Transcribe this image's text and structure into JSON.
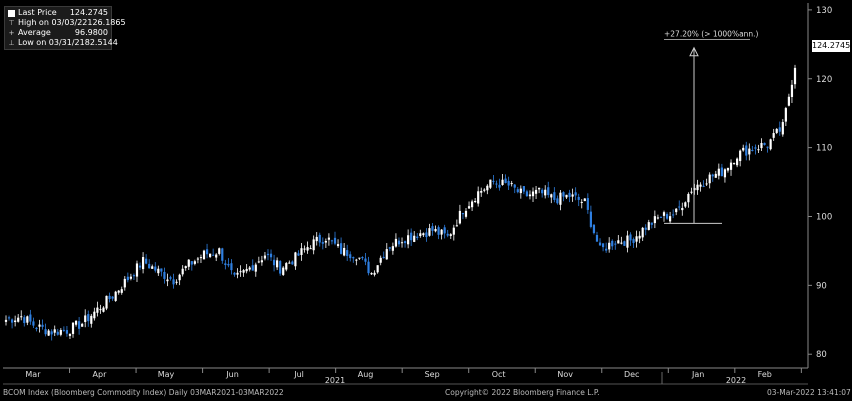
{
  "legend": {
    "last_label": "Last Price",
    "last_value": "124.2745",
    "high_label": "High on 03/03/22",
    "high_value": "126.1865",
    "avg_label": "Average",
    "avg_value": "96.9800",
    "low_label": "Low on 03/31/21",
    "low_value": "82.5144"
  },
  "last_price_tag": "124.2745",
  "annotation": "+27.20% (> 1000%ann.)",
  "footer": {
    "index": "BCOM Index (Bloomberg Commodity Index)  Daily 03MAR2021-03MAR2022",
    "copyright": "Copyright© 2022 Bloomberg Finance L.P.",
    "timestamp": "03-Mar-2022 13:41:07"
  },
  "colors": {
    "up": "#ffffff",
    "down": "#2f7fe0",
    "background": "#000000",
    "axis": "#888888"
  },
  "chart_data": {
    "type": "line",
    "style": "candlestick",
    "ylim": [
      78,
      131
    ],
    "yticks": [
      80,
      90,
      100,
      110,
      120,
      130
    ],
    "months": [
      "Mar",
      "Apr",
      "May",
      "Jun",
      "Jul",
      "Aug",
      "Sep",
      "Oct",
      "Nov",
      "Dec",
      "Jan",
      "Feb"
    ],
    "years": [
      "2021",
      "2022"
    ],
    "weekly_close": [
      {
        "week": "2021-03-05",
        "value": 85.0
      },
      {
        "week": "2021-03-12",
        "value": 85.5
      },
      {
        "week": "2021-03-19",
        "value": 84.0
      },
      {
        "week": "2021-03-26",
        "value": 83.3
      },
      {
        "week": "2021-04-02",
        "value": 83.5
      },
      {
        "week": "2021-04-09",
        "value": 84.5
      },
      {
        "week": "2021-04-16",
        "value": 86.5
      },
      {
        "week": "2021-04-23",
        "value": 88.5
      },
      {
        "week": "2021-04-30",
        "value": 91.0
      },
      {
        "week": "2021-05-07",
        "value": 93.5
      },
      {
        "week": "2021-05-14",
        "value": 92.0
      },
      {
        "week": "2021-05-21",
        "value": 90.8
      },
      {
        "week": "2021-05-28",
        "value": 93.0
      },
      {
        "week": "2021-06-04",
        "value": 94.5
      },
      {
        "week": "2021-06-11",
        "value": 95.0
      },
      {
        "week": "2021-06-18",
        "value": 90.8
      },
      {
        "week": "2021-06-25",
        "value": 92.5
      },
      {
        "week": "2021-07-02",
        "value": 94.5
      },
      {
        "week": "2021-07-09",
        "value": 92.5
      },
      {
        "week": "2021-07-16",
        "value": 94.0
      },
      {
        "week": "2021-07-23",
        "value": 96.0
      },
      {
        "week": "2021-07-30",
        "value": 97.0
      },
      {
        "week": "2021-08-06",
        "value": 95.0
      },
      {
        "week": "2021-08-13",
        "value": 94.5
      },
      {
        "week": "2021-08-20",
        "value": 91.8
      },
      {
        "week": "2021-08-27",
        "value": 95.5
      },
      {
        "week": "2021-09-03",
        "value": 96.8
      },
      {
        "week": "2021-09-10",
        "value": 97.5
      },
      {
        "week": "2021-09-17",
        "value": 98.0
      },
      {
        "week": "2021-09-24",
        "value": 97.0
      },
      {
        "week": "2021-10-01",
        "value": 101.0
      },
      {
        "week": "2021-10-08",
        "value": 103.5
      },
      {
        "week": "2021-10-15",
        "value": 105.0
      },
      {
        "week": "2021-10-22",
        "value": 104.5
      },
      {
        "week": "2021-10-29",
        "value": 103.0
      },
      {
        "week": "2021-11-05",
        "value": 103.5
      },
      {
        "week": "2021-11-12",
        "value": 102.5
      },
      {
        "week": "2021-11-19",
        "value": 103.0
      },
      {
        "week": "2021-11-26",
        "value": 102.0
      },
      {
        "week": "2021-12-03",
        "value": 95.0
      },
      {
        "week": "2021-12-10",
        "value": 96.5
      },
      {
        "week": "2021-12-17",
        "value": 96.5
      },
      {
        "week": "2021-12-24",
        "value": 98.5
      },
      {
        "week": "2021-12-31",
        "value": 100.0
      },
      {
        "week": "2022-01-07",
        "value": 100.5
      },
      {
        "week": "2022-01-14",
        "value": 104.0
      },
      {
        "week": "2022-01-21",
        "value": 105.5
      },
      {
        "week": "2022-01-28",
        "value": 106.5
      },
      {
        "week": "2022-02-04",
        "value": 109.0
      },
      {
        "week": "2022-02-11",
        "value": 110.0
      },
      {
        "week": "2022-02-18",
        "value": 110.5
      },
      {
        "week": "2022-02-25",
        "value": 113.0
      },
      {
        "week": "2022-03-03",
        "value": 124.3
      }
    ]
  }
}
